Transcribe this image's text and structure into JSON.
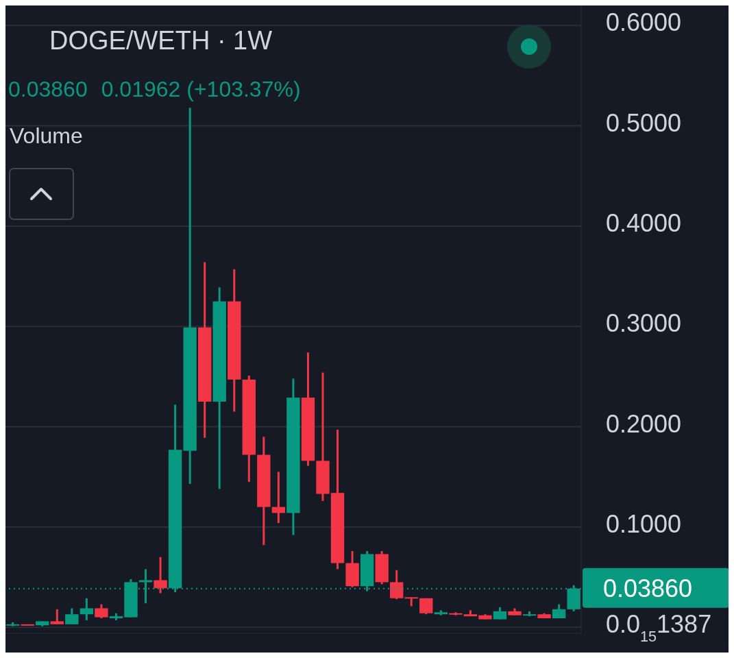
{
  "chart_data": {
    "type": "candlestick",
    "title": "DOGE/WETH · 1W",
    "annotations": [
      "0.03860",
      "0.01962 (+103.37%)",
      "Volume"
    ],
    "categories": [
      null,
      null,
      null,
      null,
      null,
      null,
      null,
      null,
      null,
      null,
      null,
      null,
      null,
      null,
      null,
      null,
      null,
      null,
      null,
      null,
      null,
      null,
      null,
      null,
      null,
      null,
      null,
      null,
      null,
      null,
      null,
      null,
      null,
      null,
      null,
      null,
      null,
      null,
      null
    ],
    "ohlc": [
      [
        0.002,
        0.005,
        0.001,
        0.003
      ],
      [
        0.003,
        0.003,
        0.002,
        0.002
      ],
      [
        0.002,
        0.006,
        0.001,
        0.006
      ],
      [
        0.006,
        0.018,
        0.003,
        0.003
      ],
      [
        0.003,
        0.019,
        0.003,
        0.013
      ],
      [
        0.013,
        0.029,
        0.007,
        0.019
      ],
      [
        0.019,
        0.023,
        0.009,
        0.01
      ],
      [
        0.009,
        0.014,
        0.007,
        0.011
      ],
      [
        0.01,
        0.048,
        0.01,
        0.045
      ],
      [
        0.045,
        0.058,
        0.024,
        0.047
      ],
      [
        0.047,
        0.07,
        0.034,
        0.039
      ],
      [
        0.039,
        0.222,
        0.035,
        0.177
      ],
      [
        0.176,
        0.518,
        0.143,
        0.299
      ],
      [
        0.299,
        0.364,
        0.189,
        0.225
      ],
      [
        0.225,
        0.339,
        0.138,
        0.325
      ],
      [
        0.325,
        0.357,
        0.215,
        0.247
      ],
      [
        0.247,
        0.251,
        0.145,
        0.172
      ],
      [
        0.172,
        0.19,
        0.082,
        0.12
      ],
      [
        0.12,
        0.155,
        0.104,
        0.114
      ],
      [
        0.114,
        0.248,
        0.092,
        0.229
      ],
      [
        0.229,
        0.274,
        0.161,
        0.166
      ],
      [
        0.166,
        0.254,
        0.126,
        0.133
      ],
      [
        0.134,
        0.197,
        0.058,
        0.064
      ],
      [
        0.064,
        0.076,
        0.04,
        0.041
      ],
      [
        0.041,
        0.076,
        0.036,
        0.073
      ],
      [
        0.073,
        0.076,
        0.043,
        0.045
      ],
      [
        0.045,
        0.057,
        0.028,
        0.029
      ],
      [
        0.03,
        0.03,
        0.021,
        0.029
      ],
      [
        0.029,
        0.029,
        0.013,
        0.014
      ],
      [
        0.013,
        0.017,
        0.012,
        0.015
      ],
      [
        0.014,
        0.015,
        0.012,
        0.013
      ],
      [
        0.013,
        0.017,
        0.011,
        0.011
      ],
      [
        0.012,
        0.013,
        0.008,
        0.008
      ],
      [
        0.008,
        0.02,
        0.008,
        0.016
      ],
      [
        0.016,
        0.019,
        0.012,
        0.012
      ],
      [
        0.012,
        0.016,
        0.011,
        0.013
      ],
      [
        0.013,
        0.014,
        0.009,
        0.009
      ],
      [
        0.009,
        0.023,
        0.009,
        0.018
      ],
      [
        0.018,
        0.042,
        0.016,
        0.0386
      ]
    ],
    "colors": [
      "#089981",
      "#f23645",
      "#089981",
      "#f23645",
      "#089981",
      "#089981",
      "#f23645",
      "#089981",
      "#089981",
      "#089981",
      "#f23645",
      "#089981",
      "#089981",
      "#f23645",
      "#089981",
      "#f23645",
      "#f23645",
      "#f23645",
      "#f23645",
      "#089981",
      "#f23645",
      "#f23645",
      "#f23645",
      "#f23645",
      "#089981",
      "#f23645",
      "#f23645",
      "#f23645",
      "#f23645",
      "#089981",
      "#f23645",
      "#f23645",
      "#f23645",
      "#089981",
      "#f23645",
      "#089981",
      "#f23645",
      "#089981",
      "#089981"
    ],
    "ylim": [
      -0.006,
      0.62
    ],
    "yticks": [
      {
        "value": 1.387e-16,
        "label": "0.0$_{15}$1387"
      },
      {
        "value": 0.1,
        "label": "0.1000"
      },
      {
        "value": 0.2,
        "label": "0.2000"
      },
      {
        "value": 0.3,
        "label": "0.3000"
      },
      {
        "value": 0.4,
        "label": "0.4000"
      },
      {
        "value": 0.5,
        "label": "0.5000"
      },
      {
        "value": 0.6,
        "label": "0.6000"
      }
    ],
    "ref_lines": [
      {
        "axis": "y",
        "value": 0.0386,
        "label": "0.03860",
        "color": "#089981",
        "line_style": "dotted"
      }
    ],
    "grid": "y",
    "tick_labels": "y"
  }
}
